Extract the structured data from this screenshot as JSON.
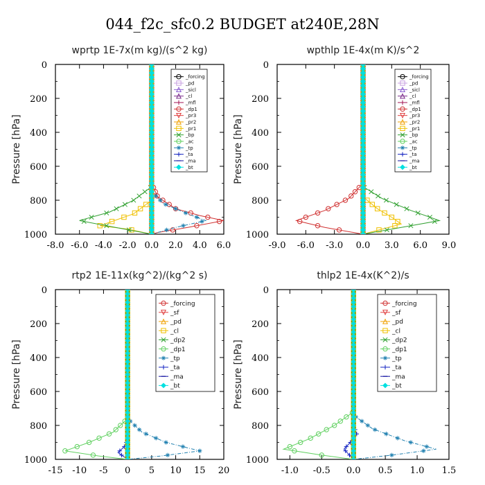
{
  "title": "044_f2c_sfc0.2  BUDGET at240E,28N",
  "chart_data": [
    {
      "type": "line",
      "title": "wprtp  1E-7x(m kg)/(s^2 kg)",
      "ylabel": "Pressure [hPa]",
      "xlim": [
        -8,
        6
      ],
      "ylim": [
        1000,
        0
      ],
      "xticks": [
        "-8.0",
        "-6.0",
        "-4.0",
        "-2.0",
        "0.0",
        "2.0",
        "4.0",
        "6.0"
      ],
      "yticks": [
        "0",
        "200",
        "400",
        "600",
        "800",
        "1000"
      ],
      "legend_position": "top-right",
      "series": [
        {
          "name": "_forcing",
          "color": "#000000",
          "marker": "circle",
          "values": [
            [
              0,
              0
            ],
            [
              0,
              1000
            ]
          ]
        },
        {
          "name": "_pd",
          "color": "#c8a0e0",
          "marker": "square",
          "values": [
            [
              0,
              0
            ],
            [
              0,
              1000
            ]
          ]
        },
        {
          "name": "_sicl",
          "color": "#8a5cd0",
          "marker": "triangle",
          "values": [
            [
              0,
              0
            ],
            [
              0,
              1000
            ]
          ]
        },
        {
          "name": "_cl",
          "color": "#7a2a8a",
          "marker": "triangle",
          "values": [
            [
              0,
              0
            ],
            [
              0,
              1000
            ]
          ]
        },
        {
          "name": "_mfl",
          "color": "#a01050",
          "marker": "plus",
          "values": [
            [
              0,
              0
            ],
            [
              0,
              1000
            ]
          ]
        },
        {
          "name": "_dp1",
          "color": "#d03030",
          "marker": "circle",
          "values": [
            [
              0,
              0
            ],
            [
              0,
              700
            ],
            [
              0.5,
              780
            ],
            [
              2,
              850
            ],
            [
              4,
              890
            ],
            [
              6,
              920
            ],
            [
              3,
              960
            ],
            [
              0.5,
              990
            ],
            [
              0,
              1000
            ]
          ]
        },
        {
          "name": "_pr3",
          "color": "#e04040",
          "marker": "tri-down",
          "values": [
            [
              0,
              0
            ],
            [
              0,
              1000
            ]
          ]
        },
        {
          "name": "_pr2",
          "color": "#f0a000",
          "marker": "triangle",
          "values": [
            [
              0,
              0
            ],
            [
              0,
              1000
            ]
          ]
        },
        {
          "name": "_pr1",
          "color": "#f0c000",
          "marker": "square",
          "values": [
            [
              0,
              0
            ],
            [
              0,
              800
            ],
            [
              -1.5,
              880
            ],
            [
              -3.5,
              930
            ],
            [
              -4.3,
              950
            ],
            [
              -2,
              970
            ],
            [
              0,
              1000
            ]
          ]
        },
        {
          "name": "_bp",
          "color": "#30a030",
          "marker": "x",
          "values": [
            [
              0,
              0
            ],
            [
              0,
              720
            ],
            [
              -1.5,
              800
            ],
            [
              -3.5,
              870
            ],
            [
              -6,
              920
            ],
            [
              -3,
              960
            ],
            [
              0,
              1000
            ]
          ]
        },
        {
          "name": "_ac",
          "color": "#60d060",
          "marker": "circle",
          "values": [
            [
              0,
              0
            ],
            [
              0,
              1000
            ]
          ]
        },
        {
          "name": "_tp",
          "color": "#2080b0",
          "marker": "star",
          "values": [
            [
              0,
              0
            ],
            [
              0,
              750
            ],
            [
              1,
              820
            ],
            [
              3,
              880
            ],
            [
              4.5,
              920
            ],
            [
              2,
              960
            ],
            [
              0,
              1000
            ]
          ]
        },
        {
          "name": "_ta",
          "color": "#1020c0",
          "marker": "plus",
          "values": [
            [
              0,
              0
            ],
            [
              0,
              1000
            ]
          ]
        },
        {
          "name": "_ma",
          "color": "#1010a0",
          "marker": "dash",
          "values": [
            [
              0,
              0
            ],
            [
              0,
              1000
            ]
          ]
        },
        {
          "name": "_bt",
          "color": "#00e0e0",
          "marker": "diamond",
          "values": [
            [
              0,
              0
            ],
            [
              0,
              1000
            ]
          ]
        }
      ]
    },
    {
      "type": "line",
      "title": "wpthlp  1E-4x(m K)/s^2",
      "ylabel": "Pressure [hPa]",
      "xlim": [
        -9,
        9
      ],
      "ylim": [
        1000,
        0
      ],
      "xticks": [
        "-9.0",
        "-6.0",
        "-3.0",
        "0.0",
        "3.0",
        "6.0",
        "9.0"
      ],
      "yticks": [
        "0",
        "200",
        "400",
        "600",
        "800",
        "1000"
      ],
      "legend_position": "top-right",
      "series": [
        {
          "name": "_forcing",
          "color": "#000000",
          "marker": "circle",
          "values": [
            [
              0,
              0
            ],
            [
              0,
              1000
            ]
          ]
        },
        {
          "name": "_pd",
          "color": "#c8a0e0",
          "marker": "square",
          "values": [
            [
              0,
              0
            ],
            [
              0,
              1000
            ]
          ]
        },
        {
          "name": "_sicl",
          "color": "#8a5cd0",
          "marker": "triangle",
          "values": [
            [
              0,
              0
            ],
            [
              0,
              1000
            ]
          ]
        },
        {
          "name": "_cl",
          "color": "#7a2a8a",
          "marker": "triangle",
          "values": [
            [
              0,
              0
            ],
            [
              0,
              1000
            ]
          ]
        },
        {
          "name": "_mfl",
          "color": "#a01050",
          "marker": "plus",
          "values": [
            [
              0,
              0
            ],
            [
              0,
              1000
            ]
          ]
        },
        {
          "name": "_dp1",
          "color": "#d03030",
          "marker": "circle",
          "values": [
            [
              0,
              0
            ],
            [
              0,
              700
            ],
            [
              -1.5,
              790
            ],
            [
              -4,
              860
            ],
            [
              -7,
              920
            ],
            [
              -4,
              960
            ],
            [
              0,
              1000
            ]
          ]
        },
        {
          "name": "_pr3",
          "color": "#e04040",
          "marker": "tri-down",
          "values": [
            [
              0,
              0
            ],
            [
              0,
              1000
            ]
          ]
        },
        {
          "name": "_pr2",
          "color": "#f0a000",
          "marker": "triangle",
          "values": [
            [
              0,
              0
            ],
            [
              0,
              1000
            ]
          ]
        },
        {
          "name": "_pr1",
          "color": "#f0c000",
          "marker": "square",
          "values": [
            [
              0,
              0
            ],
            [
              0,
              780
            ],
            [
              1.5,
              850
            ],
            [
              3,
              900
            ],
            [
              4,
              940
            ],
            [
              2,
              970
            ],
            [
              0,
              1000
            ]
          ]
        },
        {
          "name": "_bp",
          "color": "#30a030",
          "marker": "x",
          "values": [
            [
              0,
              0
            ],
            [
              0,
              720
            ],
            [
              2,
              790
            ],
            [
              5,
              860
            ],
            [
              8,
              920
            ],
            [
              4,
              960
            ],
            [
              0,
              1000
            ]
          ]
        },
        {
          "name": "_ac",
          "color": "#60d060",
          "marker": "circle",
          "values": [
            [
              0,
              0
            ],
            [
              0,
              1000
            ]
          ]
        },
        {
          "name": "_tp",
          "color": "#2080b0",
          "marker": "star",
          "values": [
            [
              0,
              0
            ],
            [
              0,
              1000
            ]
          ]
        },
        {
          "name": "_ta",
          "color": "#1020c0",
          "marker": "plus",
          "values": [
            [
              0,
              0
            ],
            [
              0,
              1000
            ]
          ]
        },
        {
          "name": "_ma",
          "color": "#1010a0",
          "marker": "dash",
          "values": [
            [
              0,
              0
            ],
            [
              0,
              1000
            ]
          ]
        },
        {
          "name": "_bt",
          "color": "#00e0e0",
          "marker": "diamond",
          "values": [
            [
              0,
              0
            ],
            [
              0,
              1000
            ]
          ]
        }
      ]
    },
    {
      "type": "line",
      "title": "rtp2  1E-11x(kg^2)/(kg^2 s)",
      "ylabel": "Pressure [hPa]",
      "xlim": [
        -15,
        20
      ],
      "ylim": [
        1000,
        0
      ],
      "xticks": [
        "-15",
        "-10",
        "-5",
        "0",
        "5",
        "10",
        "15",
        "20"
      ],
      "yticks": [
        "0",
        "200",
        "400",
        "600",
        "800",
        "1000"
      ],
      "legend_position": "top-right",
      "series": [
        {
          "name": "_forcing",
          "color": "#d03030",
          "marker": "circle",
          "values": [
            [
              0,
              0
            ],
            [
              0,
              1000
            ]
          ]
        },
        {
          "name": "_sf",
          "color": "#e04040",
          "marker": "tri-down",
          "values": [
            [
              0,
              0
            ],
            [
              0,
              1000
            ]
          ]
        },
        {
          "name": "_pd",
          "color": "#f0a000",
          "marker": "triangle",
          "values": [
            [
              0,
              0
            ],
            [
              0,
              1000
            ]
          ]
        },
        {
          "name": "_cl",
          "color": "#f0c000",
          "marker": "square",
          "values": [
            [
              0,
              0
            ],
            [
              0,
              1000
            ]
          ]
        },
        {
          "name": "_dp2",
          "color": "#30a030",
          "marker": "x",
          "values": [
            [
              0,
              0
            ],
            [
              0,
              1000
            ]
          ]
        },
        {
          "name": "_dp1",
          "color": "#60d060",
          "marker": "circle",
          "values": [
            [
              0,
              0
            ],
            [
              0,
              760
            ],
            [
              -3,
              840
            ],
            [
              -8,
              900
            ],
            [
              -13,
              950
            ],
            [
              -6,
              980
            ],
            [
              0,
              1000
            ]
          ]
        },
        {
          "name": "_tp",
          "color": "#2080b0",
          "marker": "star",
          "values": [
            [
              0,
              0
            ],
            [
              0,
              760
            ],
            [
              3,
              840
            ],
            [
              8,
              900
            ],
            [
              15,
              950
            ],
            [
              7,
              980
            ],
            [
              0,
              1000
            ]
          ]
        },
        {
          "name": "_ta",
          "color": "#1020c0",
          "marker": "plus",
          "values": [
            [
              0,
              0
            ],
            [
              0,
              880
            ],
            [
              -0.5,
              920
            ],
            [
              -2,
              960
            ],
            [
              0,
              1000
            ]
          ]
        },
        {
          "name": "_ma",
          "color": "#1010a0",
          "marker": "dash",
          "values": [
            [
              0,
              0
            ],
            [
              0,
              1000
            ]
          ]
        },
        {
          "name": "_bt",
          "color": "#00e0e0",
          "marker": "diamond",
          "values": [
            [
              0,
              0
            ],
            [
              0,
              1000
            ]
          ]
        }
      ]
    },
    {
      "type": "line",
      "title": "thlp2  1E-4x(K^2)/s",
      "ylabel": "Pressure [hPa]",
      "xlim": [
        -1.2,
        1.5
      ],
      "ylim": [
        1000,
        0
      ],
      "xticks": [
        "-1.0",
        "-0.5",
        "0.0",
        "0.5",
        "1.0",
        "1.5"
      ],
      "yticks": [
        "0",
        "200",
        "400",
        "600",
        "800",
        "1000"
      ],
      "legend_position": "top-right",
      "series": [
        {
          "name": "_forcing",
          "color": "#d03030",
          "marker": "circle",
          "values": [
            [
              0,
              0
            ],
            [
              0,
              1000
            ]
          ]
        },
        {
          "name": "_sf",
          "color": "#e04040",
          "marker": "tri-down",
          "values": [
            [
              0,
              0
            ],
            [
              0,
              1000
            ]
          ]
        },
        {
          "name": "_pd",
          "color": "#f0a000",
          "marker": "triangle",
          "values": [
            [
              0,
              0
            ],
            [
              0,
              1000
            ]
          ]
        },
        {
          "name": "_cl",
          "color": "#f0c000",
          "marker": "square",
          "values": [
            [
              0,
              0
            ],
            [
              0,
              1000
            ]
          ]
        },
        {
          "name": "_dp2",
          "color": "#30a030",
          "marker": "x",
          "values": [
            [
              0,
              0
            ],
            [
              0,
              1000
            ]
          ]
        },
        {
          "name": "_dp1",
          "color": "#60d060",
          "marker": "circle",
          "values": [
            [
              0,
              0
            ],
            [
              0,
              720
            ],
            [
              -0.3,
              800
            ],
            [
              -0.7,
              880
            ],
            [
              -1.1,
              940
            ],
            [
              -0.5,
              975
            ],
            [
              0,
              1000
            ]
          ]
        },
        {
          "name": "_tp",
          "color": "#2080b0",
          "marker": "star",
          "values": [
            [
              0,
              0
            ],
            [
              0,
              740
            ],
            [
              0.3,
              820
            ],
            [
              0.8,
              890
            ],
            [
              1.3,
              940
            ],
            [
              0.6,
              975
            ],
            [
              0,
              1000
            ]
          ]
        },
        {
          "name": "_ta",
          "color": "#1020c0",
          "marker": "plus",
          "values": [
            [
              0,
              0
            ],
            [
              0,
              800
            ],
            [
              0.05,
              850
            ],
            [
              -0.05,
              900
            ],
            [
              -0.15,
              940
            ],
            [
              0,
              1000
            ]
          ]
        },
        {
          "name": "_ma",
          "color": "#1010a0",
          "marker": "dash",
          "values": [
            [
              0,
              0
            ],
            [
              0,
              1000
            ]
          ]
        },
        {
          "name": "_bt",
          "color": "#00e0e0",
          "marker": "diamond",
          "values": [
            [
              0,
              0
            ],
            [
              0,
              1000
            ]
          ]
        }
      ]
    }
  ]
}
